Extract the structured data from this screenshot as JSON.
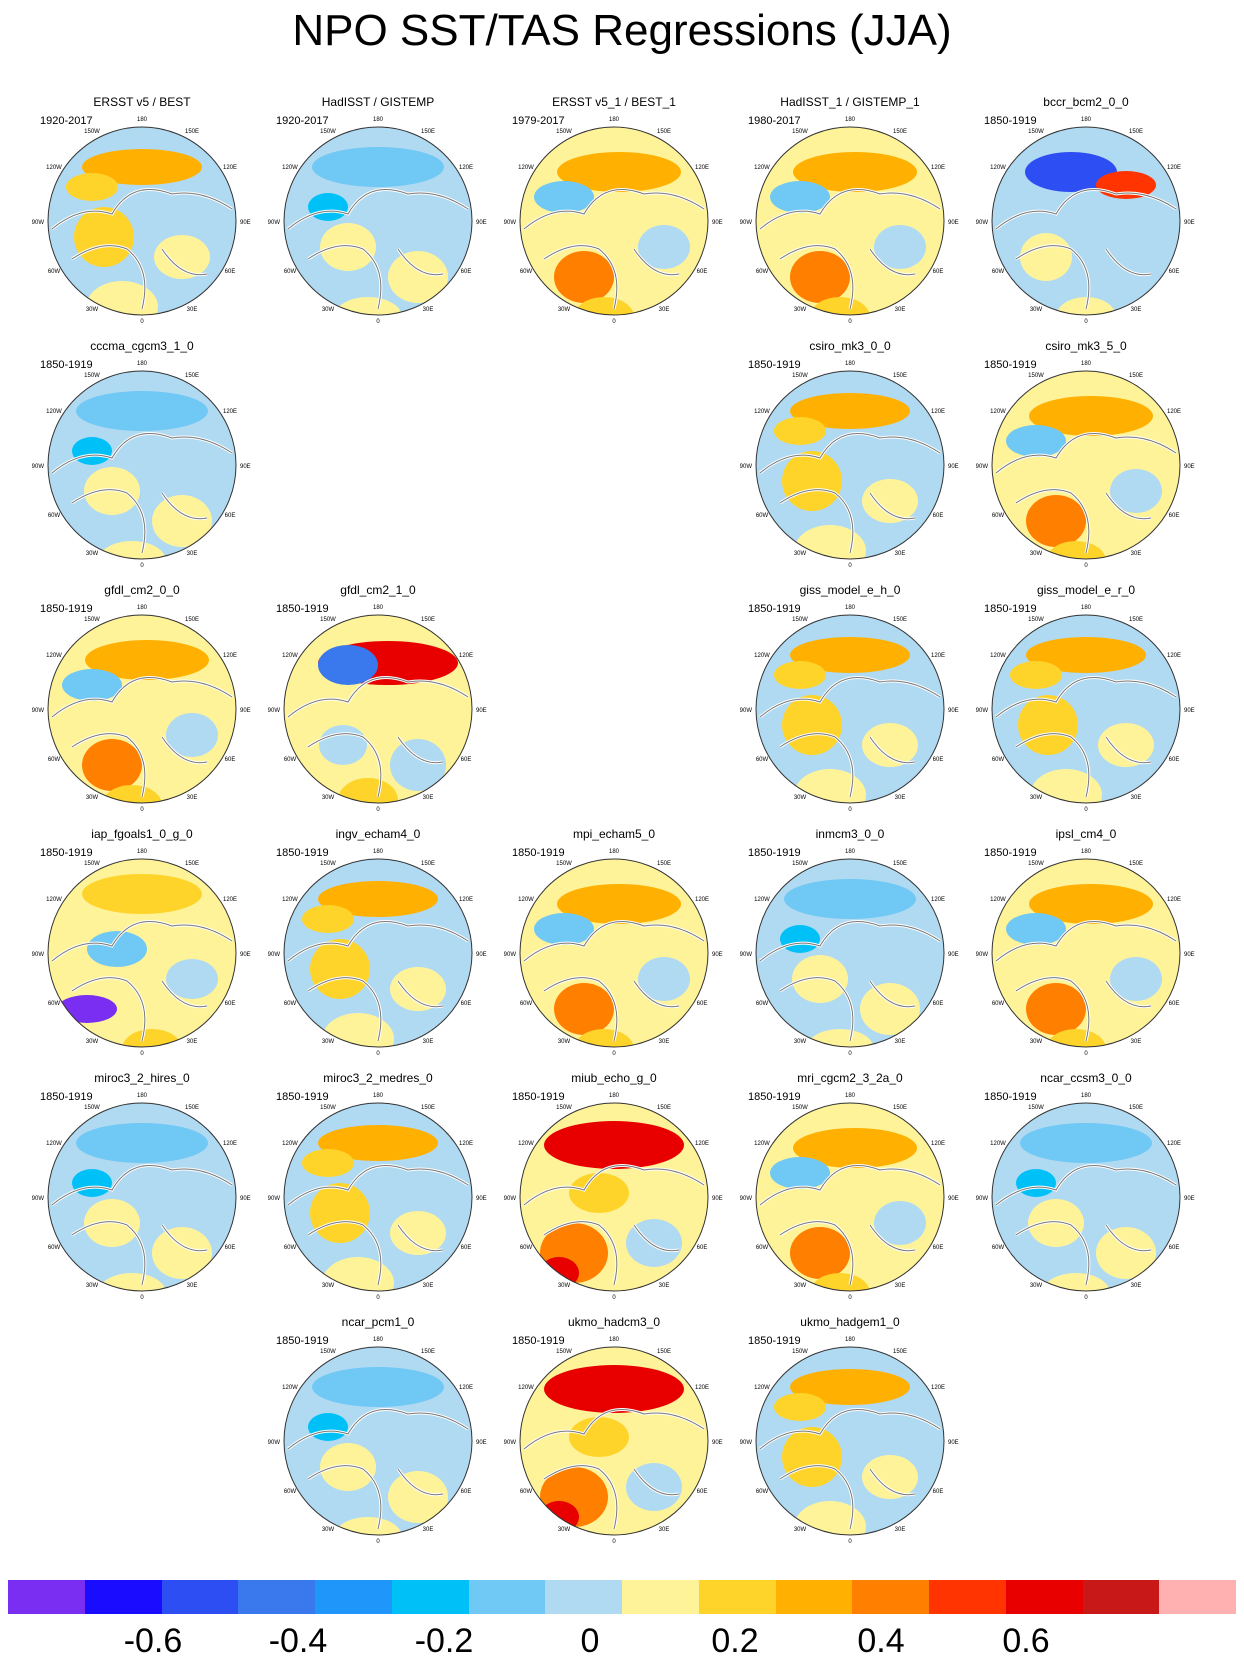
{
  "title": "NPO SST/TAS Regressions (JJA)",
  "map_labels": {
    "lon_180": "180",
    "lon_150w": "150W",
    "lon_150e": "150E",
    "lon_120w": "120W",
    "lon_120e": "120E",
    "lon_90w": "90W",
    "lon_90e": "90E",
    "lon_60w": "60W",
    "lon_60e": "60E",
    "lon_30w": "30W",
    "lon_30e": "30E",
    "lon_0": "0"
  },
  "panels": [
    {
      "title": "ERSST v5 / BEST",
      "years": "1920-2017",
      "style": "mixed"
    },
    {
      "title": "HadISST / GISTEMP",
      "years": "1920-2017",
      "style": "blue"
    },
    {
      "title": "ERSST v5_1 / BEST_1",
      "years": "1979-2017",
      "style": "warm"
    },
    {
      "title": "HadISST_1 / GISTEMP_1",
      "years": "1980-2017",
      "style": "warm"
    },
    {
      "title": "bccr_bcm2_0_0",
      "years": "1850-1919",
      "style": "deepblue"
    },
    {
      "title": "cccma_cgcm3_1_0",
      "years": "1850-1919",
      "style": "blue"
    },
    {
      "title": "csiro_mk3_0_0",
      "years": "1850-1919",
      "style": "mixed"
    },
    {
      "title": "csiro_mk3_5_0",
      "years": "1850-1919",
      "style": "warm"
    },
    {
      "title": "gfdl_cm2_0_0",
      "years": "1850-1919",
      "style": "warm"
    },
    {
      "title": "gfdl_cm2_1_0",
      "years": "1850-1919",
      "style": "strong"
    },
    {
      "title": "giss_model_e_h_0",
      "years": "1850-1919",
      "style": "mixed"
    },
    {
      "title": "giss_model_e_r_0",
      "years": "1850-1919",
      "style": "mixed"
    },
    {
      "title": "iap_fgoals1_0_g_0",
      "years": "1850-1919",
      "style": "purple"
    },
    {
      "title": "ingv_echam4_0",
      "years": "1850-1919",
      "style": "mixed"
    },
    {
      "title": "mpi_echam5_0",
      "years": "1850-1919",
      "style": "warm"
    },
    {
      "title": "inmcm3_0_0",
      "years": "1850-1919",
      "style": "blue"
    },
    {
      "title": "ipsl_cm4_0",
      "years": "1850-1919",
      "style": "warm"
    },
    {
      "title": "miroc3_2_hires_0",
      "years": "1850-1919",
      "style": "blue"
    },
    {
      "title": "miroc3_2_medres_0",
      "years": "1850-1919",
      "style": "mixed"
    },
    {
      "title": "miub_echo_g_0",
      "years": "1850-1919",
      "style": "hot"
    },
    {
      "title": "mri_cgcm2_3_2a_0",
      "years": "1850-1919",
      "style": "warm"
    },
    {
      "title": "ncar_ccsm3_0_0",
      "years": "1850-1919",
      "style": "blue"
    },
    {
      "title": "ncar_pcm1_0",
      "years": "1850-1919",
      "style": "blue"
    },
    {
      "title": "ukmo_hadcm3_0",
      "years": "1850-1919",
      "style": "hot"
    },
    {
      "title": "ukmo_hadgem1_0",
      "years": "1850-1919",
      "style": "mixed"
    }
  ],
  "colorbar": {
    "colors": [
      "#7a2ef2",
      "#1a0dff",
      "#2d4ef2",
      "#3a78ee",
      "#1e96fa",
      "#00c0f8",
      "#70c8f4",
      "#b0daf2",
      "#fff39a",
      "#ffd42a",
      "#ffb000",
      "#ff7f00",
      "#ff3400",
      "#e80000",
      "#c81818",
      "#ffb0b0"
    ],
    "ticks": [
      "-0.6",
      "-0.4",
      "-0.2",
      "0",
      "0.2",
      "0.4",
      "0.6"
    ]
  }
}
